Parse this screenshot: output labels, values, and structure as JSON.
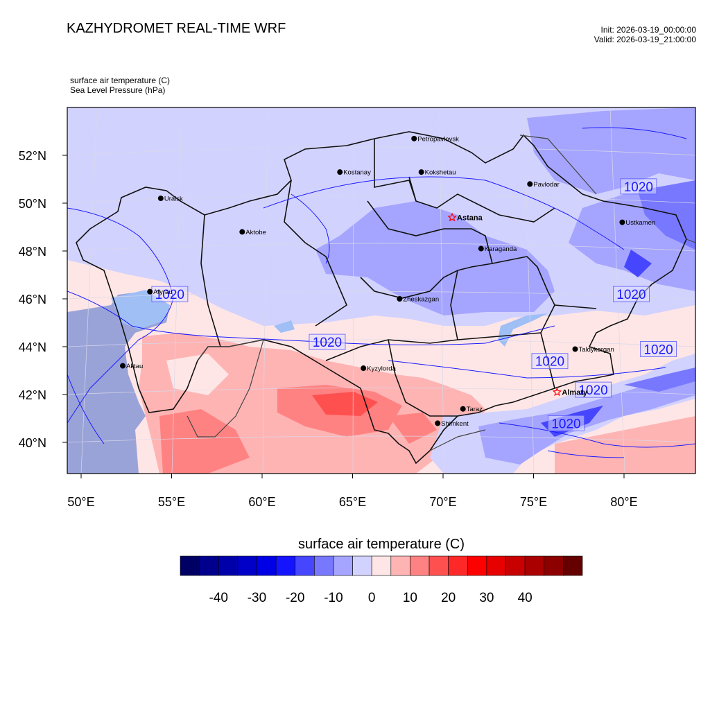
{
  "header": {
    "title": "KAZHYDROMET REAL-TIME WRF",
    "init": "Init: 2026-03-19_00:00:00",
    "valid": "Valid: 2026-03-19_21:00:00"
  },
  "fields": {
    "line1": "surface air temperature   (C)",
    "line2": "Sea Level Pressure   (hPa)"
  },
  "axes": {
    "lat_labels": [
      "52°N",
      "50°N",
      "48°N",
      "46°N",
      "44°N",
      "42°N",
      "40°N"
    ],
    "lon_labels": [
      "50°E",
      "55°E",
      "60°E",
      "65°E",
      "70°E",
      "75°E",
      "80°E"
    ]
  },
  "cities": [
    {
      "name": "Petropavlovsk",
      "lon": 68.4,
      "lat": 52.7,
      "capital": false
    },
    {
      "name": "Kostanay",
      "lon": 64.3,
      "lat": 51.3,
      "capital": false
    },
    {
      "name": "Kokshetau",
      "lon": 68.8,
      "lat": 51.3,
      "capital": false
    },
    {
      "name": "Uralsk",
      "lon": 54.4,
      "lat": 50.2,
      "capital": false
    },
    {
      "name": "Pavlodar",
      "lon": 74.8,
      "lat": 50.8,
      "capital": false
    },
    {
      "name": "Astana",
      "lon": 70.5,
      "lat": 49.4,
      "capital": true
    },
    {
      "name": "Aktobe",
      "lon": 58.9,
      "lat": 48.8,
      "capital": false
    },
    {
      "name": "Ustkamen",
      "lon": 79.9,
      "lat": 49.2,
      "capital": false
    },
    {
      "name": "Karaganda",
      "lon": 72.1,
      "lat": 48.1,
      "capital": false
    },
    {
      "name": "Atyrau",
      "lon": 53.8,
      "lat": 46.3,
      "capital": false
    },
    {
      "name": "Zheskazgan",
      "lon": 67.6,
      "lat": 46.0,
      "capital": false
    },
    {
      "name": "Taldykorgan",
      "lon": 77.3,
      "lat": 43.9,
      "capital": false
    },
    {
      "name": "Aktau",
      "lon": 52.3,
      "lat": 43.2,
      "capital": false
    },
    {
      "name": "Kyzylorda",
      "lon": 65.6,
      "lat": 43.1,
      "capital": false
    },
    {
      "name": "Almaty",
      "lon": 76.3,
      "lat": 42.1,
      "capital": true
    },
    {
      "name": "Taraz",
      "lon": 71.1,
      "lat": 41.4,
      "capital": false
    },
    {
      "name": "Shimkent",
      "lon": 69.7,
      "lat": 40.8,
      "capital": false
    }
  ],
  "isobar_labels": [
    {
      "text": "1020",
      "lon": 80.8,
      "lat": 50.7
    },
    {
      "text": "1020",
      "lon": 54.9,
      "lat": 46.2
    },
    {
      "text": "1020",
      "lon": 80.4,
      "lat": 46.2
    },
    {
      "text": "1020",
      "lon": 63.6,
      "lat": 44.2
    },
    {
      "text": "1020",
      "lon": 81.9,
      "lat": 43.9
    },
    {
      "text": "1020",
      "lon": 75.9,
      "lat": 43.4
    },
    {
      "text": "1020",
      "lon": 78.3,
      "lat": 42.2
    },
    {
      "text": "1020",
      "lon": 76.8,
      "lat": 40.8
    }
  ],
  "colorbar": {
    "title": "surface air temperature  (C)",
    "tick_labels": [
      "-40",
      "-30",
      "-20",
      "-10",
      "0",
      "10",
      "20",
      "30",
      "40"
    ],
    "colors": [
      "#000064",
      "#00008c",
      "#0000aa",
      "#0000c8",
      "#0000e6",
      "#1414ff",
      "#4646ff",
      "#7878ff",
      "#a5a5ff",
      "#d2d2ff",
      "#ffe6e6",
      "#ffb4b4",
      "#ff8282",
      "#ff5050",
      "#ff2828",
      "#ff0000",
      "#e60000",
      "#c80000",
      "#aa0000",
      "#8c0000",
      "#640000"
    ]
  }
}
